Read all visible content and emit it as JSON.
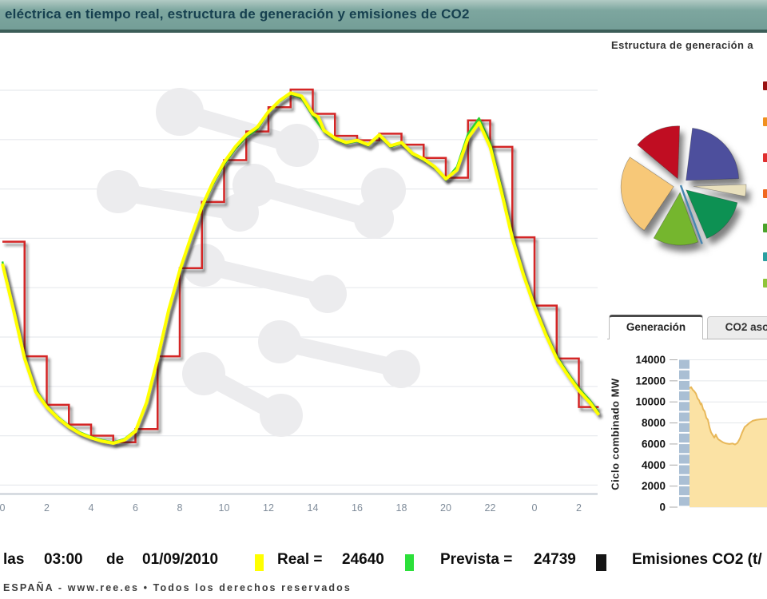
{
  "title_bar": {
    "title": "eléctrica en tiempo real, estructura de generación y emisiones de CO2"
  },
  "right_panel": {
    "heading": "Estructura de generación a",
    "tabs": [
      {
        "label": "Generación",
        "active": true
      },
      {
        "label": "CO2 aso",
        "active": false
      }
    ],
    "legend_markers": [
      {
        "y": 102,
        "color": "#991111"
      },
      {
        "y": 147,
        "color": "#f09020"
      },
      {
        "y": 192,
        "color": "#e03030"
      },
      {
        "y": 237,
        "color": "#f06820"
      },
      {
        "y": 280,
        "color": "#4aa32a"
      },
      {
        "y": 316,
        "color": "#2a9fa0"
      },
      {
        "y": 349,
        "color": "#8fc43a"
      }
    ]
  },
  "status_bar": {
    "hour_prefix": "las",
    "time": "03:00",
    "date_connector": "de",
    "date": "01/09/2010",
    "real_label": "Real =",
    "real_value": "24640",
    "prevista_label": "Prevista =",
    "prevista_value": "24739",
    "emisiones_label": "Emisiones CO2 (t/",
    "real_color": "#ffff00",
    "prevista_color": "#2ce03a",
    "emisiones_color": "#151515"
  },
  "footer": {
    "text": "ESPAÑA - www.ree.es • Todos los derechos reservados"
  },
  "chart_data": [
    {
      "id": "demanda-tiempo-real",
      "type": "line",
      "x_tick_labels": [
        "0",
        "2",
        "4",
        "6",
        "8",
        "10",
        "12",
        "14",
        "16",
        "18",
        "20",
        "22",
        "0",
        "2"
      ],
      "x_hours_span": [
        0,
        26.9
      ],
      "y_axis_visible": false,
      "ylim_est": [
        21000,
        40000
      ],
      "grid": true,
      "series": [
        {
          "name": "Real",
          "color": "#ffff00",
          "width": 4,
          "points": [
            [
              0,
              31500
            ],
            [
              0.5,
              29400
            ],
            [
              1,
              27200
            ],
            [
              1.5,
              25700
            ],
            [
              2,
              25000
            ],
            [
              2.5,
              24500
            ],
            [
              3,
              24100
            ],
            [
              3.5,
              23800
            ],
            [
              4,
              23600
            ],
            [
              4.5,
              23450
            ],
            [
              5,
              23360
            ],
            [
              5.5,
              23500
            ],
            [
              6,
              23900
            ],
            [
              6.5,
              25200
            ],
            [
              7,
              27200
            ],
            [
              7.5,
              29400
            ],
            [
              8,
              31200
            ],
            [
              8.5,
              32700
            ],
            [
              9,
              34100
            ],
            [
              9.5,
              35200
            ],
            [
              10,
              36100
            ],
            [
              10.5,
              36800
            ],
            [
              11,
              37350
            ],
            [
              11.5,
              37700
            ],
            [
              12,
              38400
            ],
            [
              12.5,
              38900
            ],
            [
              13,
              39250
            ],
            [
              13.5,
              39100
            ],
            [
              14,
              38300
            ],
            [
              14.25,
              38150
            ],
            [
              14.5,
              37550
            ],
            [
              15,
              37200
            ],
            [
              15.5,
              37000
            ],
            [
              16,
              37100
            ],
            [
              16.5,
              36900
            ],
            [
              17,
              37350
            ],
            [
              17.5,
              36850
            ],
            [
              18,
              37000
            ],
            [
              18.5,
              36500
            ],
            [
              19,
              36250
            ],
            [
              19.5,
              35900
            ],
            [
              20,
              35350
            ],
            [
              20.5,
              35750
            ],
            [
              21,
              37200
            ],
            [
              21.5,
              37900
            ],
            [
              22,
              36800
            ],
            [
              22.5,
              34800
            ],
            [
              23,
              32650
            ],
            [
              23.5,
              31000
            ],
            [
              24,
              29550
            ],
            [
              24.5,
              28300
            ],
            [
              25,
              27200
            ],
            [
              25.5,
              26450
            ],
            [
              26,
              25750
            ],
            [
              26.5,
              25200
            ],
            [
              26.9,
              24640
            ]
          ]
        },
        {
          "name": "Prevista",
          "color": "#2fd12f",
          "width": 2.5,
          "points": [
            [
              0,
              31600
            ],
            [
              0.5,
              29500
            ],
            [
              1,
              27300
            ],
            [
              1.5,
              25800
            ],
            [
              2,
              25050
            ],
            [
              2.5,
              24550
            ],
            [
              3,
              24150
            ],
            [
              3.5,
              23850
            ],
            [
              4,
              23650
            ],
            [
              4.5,
              23500
            ],
            [
              5,
              23400
            ],
            [
              5.5,
              23550
            ],
            [
              6,
              23950
            ],
            [
              6.5,
              25100
            ],
            [
              7,
              27100
            ],
            [
              7.5,
              29300
            ],
            [
              8,
              31100
            ],
            [
              8.5,
              32600
            ],
            [
              9,
              34000
            ],
            [
              9.5,
              35100
            ],
            [
              10,
              36000
            ],
            [
              10.5,
              36700
            ],
            [
              11,
              37250
            ],
            [
              11.5,
              37600
            ],
            [
              12,
              38350
            ],
            [
              12.5,
              38850
            ],
            [
              13,
              39200
            ],
            [
              13.5,
              39000
            ],
            [
              14,
              38200
            ],
            [
              14.5,
              37500
            ],
            [
              15,
              37150
            ],
            [
              15.5,
              36950
            ],
            [
              16,
              37050
            ],
            [
              16.5,
              36850
            ],
            [
              17,
              37300
            ],
            [
              17.5,
              36800
            ],
            [
              18,
              36950
            ],
            [
              18.5,
              36450
            ],
            [
              19,
              36200
            ],
            [
              19.5,
              35850
            ],
            [
              20,
              35300
            ],
            [
              20.5,
              35900
            ],
            [
              21,
              37400
            ],
            [
              21.5,
              38100
            ],
            [
              22,
              37000
            ],
            [
              22.5,
              35000
            ],
            [
              23,
              32800
            ],
            [
              23.5,
              31100
            ],
            [
              24,
              29650
            ],
            [
              24.5,
              28400
            ],
            [
              25,
              27300
            ],
            [
              25.5,
              26550
            ],
            [
              26,
              25850
            ],
            [
              26.5,
              25300
            ],
            [
              26.9,
              24739
            ]
          ]
        },
        {
          "name": "Programada",
          "color": "#d42525",
          "width": 2.5,
          "step": true,
          "values_hourly": [
            32500,
            27300,
            25100,
            24200,
            23700,
            23400,
            24000,
            27300,
            31300,
            34300,
            36200,
            37500,
            38600,
            39400,
            38300,
            37300,
            37100,
            37400,
            36900,
            36300,
            35400,
            38000,
            36800,
            32700,
            29600,
            27200,
            25000
          ]
        }
      ]
    },
    {
      "id": "estructura-generacion",
      "type": "pie",
      "slices": [
        {
          "color": "#4d4f9d",
          "start_deg": 2,
          "end_deg": 83,
          "share_pct_est": 22.5
        },
        {
          "color": "#c01020",
          "start_deg": 88,
          "end_deg": 140,
          "share_pct_est": 14.4
        },
        {
          "color": "#f7c878",
          "start_deg": 146,
          "end_deg": 236,
          "share_pct_est": 25.0
        },
        {
          "color": "#74b62e",
          "start_deg": 240,
          "end_deg": 290,
          "share_pct_est": 13.9
        },
        {
          "color": "#0e9152",
          "start_deg": 293,
          "end_deg": 346,
          "share_pct_est": 14.7
        },
        {
          "color": "#e9e0bd",
          "start_deg": 349,
          "end_deg": 362,
          "share_pct_est": 3.6,
          "offset": 16
        }
      ],
      "pointer": {
        "color": "#4a87b0",
        "angle_deg": -70,
        "length": 78
      }
    },
    {
      "id": "ciclo-combinado",
      "type": "area",
      "ylabel": "Ciclo combinado MW",
      "yticks": [
        0,
        2000,
        4000,
        6000,
        8000,
        10000,
        12000,
        14000
      ],
      "ylim": [
        0,
        14000
      ],
      "fill": "#fbe2a4",
      "stroke": "#e8b85a",
      "points": [
        [
          0,
          11300
        ],
        [
          2,
          11400
        ],
        [
          4,
          11150
        ],
        [
          6,
          11000
        ],
        [
          8,
          10800
        ],
        [
          10,
          10350
        ],
        [
          12,
          10150
        ],
        [
          14,
          9750
        ],
        [
          15,
          9850
        ],
        [
          17,
          9300
        ],
        [
          19,
          9100
        ],
        [
          21,
          8500
        ],
        [
          23,
          8300
        ],
        [
          25,
          7600
        ],
        [
          27,
          7100
        ],
        [
          29,
          6850
        ],
        [
          31,
          6600
        ],
        [
          33,
          6900
        ],
        [
          34,
          6700
        ],
        [
          36,
          6450
        ],
        [
          39,
          6300
        ],
        [
          42,
          6150
        ],
        [
          46,
          6050
        ],
        [
          50,
          6000
        ],
        [
          54,
          6050
        ],
        [
          57,
          5950
        ],
        [
          60,
          6100
        ],
        [
          63,
          6500
        ],
        [
          66,
          7100
        ],
        [
          69,
          7600
        ],
        [
          72,
          7800
        ],
        [
          75,
          8000
        ],
        [
          79,
          8200
        ],
        [
          84,
          8300
        ],
        [
          90,
          8350
        ],
        [
          98,
          8400
        ]
      ]
    }
  ]
}
